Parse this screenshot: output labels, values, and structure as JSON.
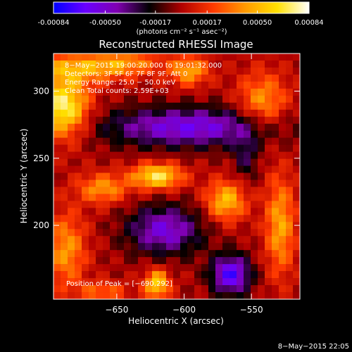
{
  "colorbar": {
    "tick_labels": [
      "-0.00084",
      "-0.00050",
      "-0.00017",
      "0.00017",
      "0.00050",
      "0.00084"
    ],
    "tick_values": [
      -0.00084,
      -0.0005,
      -0.00017,
      0.00017,
      0.0005,
      0.00084
    ],
    "range": [
      -0.00084,
      0.00084
    ],
    "units_label": "(photons cm⁻² s⁻¹ asec⁻²)",
    "colors": [
      "#0000ff",
      "#6a00ff",
      "#8000b0",
      "#000000",
      "#b00000",
      "#ff3a00",
      "#ff9a00",
      "#ffe000",
      "#ffffff"
    ]
  },
  "chart_data": {
    "type": "heatmap",
    "title": "Reconstructed RHESSI Image",
    "xlabel": "Heliocentric X (arcsec)",
    "ylabel": "Heliocentric Y (arcsec)",
    "xlim": [
      -697,
      -514
    ],
    "ylim": [
      145,
      328
    ],
    "x_ticks": [
      -650,
      -600,
      -550
    ],
    "x_tick_labels": [
      "−650",
      "−600",
      "−550"
    ],
    "y_ticks": [
      200,
      250,
      300
    ],
    "y_tick_labels": [
      "200",
      "250",
      "300"
    ],
    "grid": false,
    "colorscale_range": [
      -0.00084,
      0.00084
    ],
    "annotations": [
      " 8−May−2015 19:00:20.000 to 19:01:32.000",
      "Detectors: 3F 5F 6F 7F 8F 9F, Att 0",
      "Energy Range: 25.0 − 50.0 keV",
      "Clean     Total counts: 2.59E+03"
    ],
    "peak_label": "Position of Peak = [−690,292]",
    "peak_position": [
      -690,
      292
    ],
    "total_counts": 2590,
    "energy_range_keV": [
      25.0,
      50.0
    ]
  },
  "footer": {
    "timestamp": "8−May−2015 22:05"
  }
}
